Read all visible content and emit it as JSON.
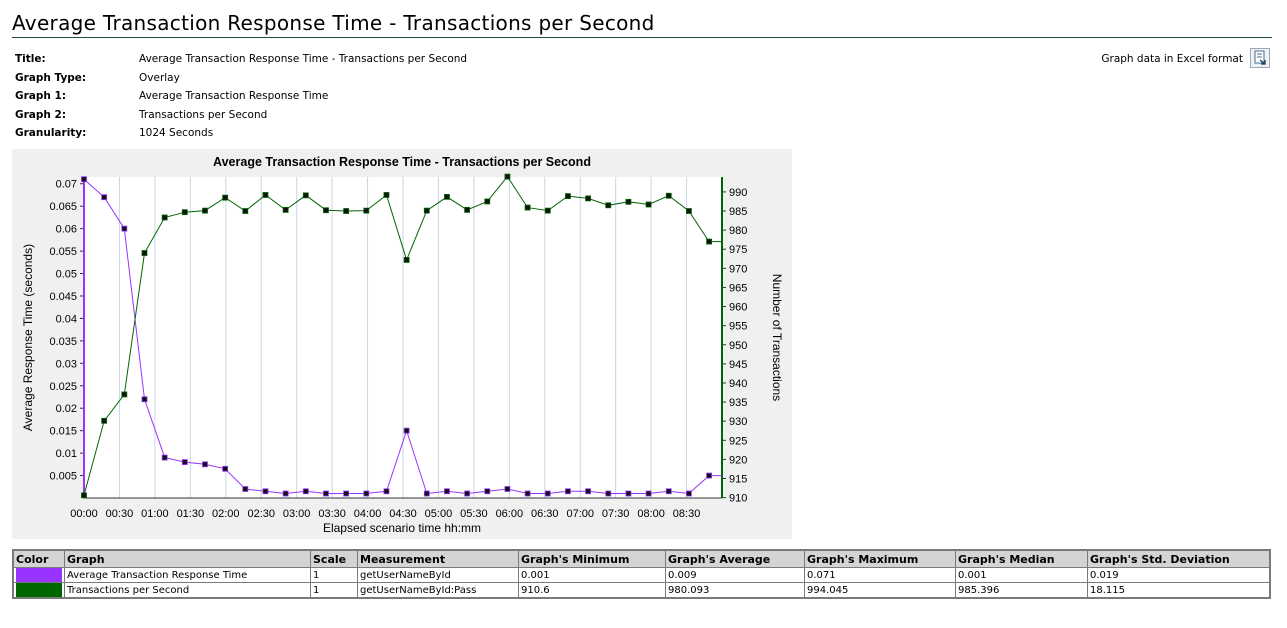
{
  "page_title": "Average Transaction Response Time - Transactions per Second",
  "meta": [
    {
      "key": "Title:",
      "value": "Average Transaction Response Time - Transactions per Second"
    },
    {
      "key": "Graph Type:",
      "value": "Overlay"
    },
    {
      "key": "Graph 1:",
      "value": "Average Transaction Response Time"
    },
    {
      "key": "Graph 2:",
      "value": "Transactions per Second"
    },
    {
      "key": "Granularity:",
      "value": "1024 Seconds"
    }
  ],
  "excel_link": "Graph data in Excel format",
  "excel_icon": "excel-export-icon",
  "chart_data": {
    "type": "line",
    "title": "Average Transaction Response Time - Transactions per Second",
    "xlabel": "Elapsed scenario time hh:mm",
    "ylabel": "Average Response Time (seconds)",
    "y2label": "Number of Transactions",
    "xlim": [
      0,
      9
    ],
    "ylim": [
      0,
      0.0715
    ],
    "y2lim": [
      909.9,
      993.9
    ],
    "grid": "vertical",
    "x_ticks": [
      "00:00",
      "00:30",
      "01:00",
      "01:30",
      "02:00",
      "02:30",
      "03:00",
      "03:30",
      "04:00",
      "04:30",
      "05:00",
      "05:30",
      "06:00",
      "06:30",
      "07:00",
      "07:30",
      "08:00",
      "08:30"
    ],
    "y_ticks": [
      "0.005",
      "0.01",
      "0.015",
      "0.02",
      "0.025",
      "0.03",
      "0.035",
      "0.04",
      "0.045",
      "0.05",
      "0.055",
      "0.06",
      "0.065",
      "0.07"
    ],
    "y2_ticks": [
      "910",
      "915",
      "920",
      "925",
      "930",
      "935",
      "940",
      "945",
      "950",
      "955",
      "960",
      "965",
      "970",
      "975",
      "980",
      "985",
      "990"
    ],
    "x": [
      0,
      0.2844,
      0.5689,
      0.8533,
      1.1378,
      1.4222,
      1.7067,
      1.9911,
      2.2756,
      2.56,
      2.8444,
      3.1289,
      3.4133,
      3.6978,
      3.9822,
      4.2667,
      4.5511,
      4.8356,
      5.12,
      5.4044,
      5.6889,
      5.9733,
      6.2578,
      6.5422,
      6.8267,
      7.1111,
      7.3956,
      7.68,
      7.9644,
      8.2489,
      8.5333,
      8.8178,
      9.0
    ],
    "series": [
      {
        "name": "Average Transaction Response Time",
        "axis": "left",
        "color": "#9933ff",
        "values": [
          0.071,
          0.067,
          0.06,
          0.022,
          0.009,
          0.008,
          0.0075,
          0.0065,
          0.002,
          0.0015,
          0.001,
          0.0015,
          0.001,
          0.001,
          0.001,
          0.0015,
          0.015,
          0.001,
          0.0015,
          0.001,
          0.0015,
          0.002,
          0.001,
          0.001,
          0.0015,
          0.0015,
          0.001,
          0.001,
          0.001,
          0.0015,
          0.001,
          0.005,
          0.005
        ]
      },
      {
        "name": "Transactions per Second",
        "axis": "right",
        "color": "#006600",
        "values": [
          910.6,
          930.1,
          937.0,
          974.0,
          983.3,
          984.7,
          985.1,
          988.5,
          985.0,
          989.2,
          985.3,
          989.1,
          985.2,
          985.0,
          985.1,
          989.2,
          972.2,
          985.1,
          988.7,
          985.3,
          987.5,
          994.0,
          985.9,
          985.1,
          988.9,
          988.3,
          986.5,
          987.4,
          986.7,
          989.0,
          985.0,
          977.0,
          977.0
        ]
      }
    ]
  },
  "legend_table": {
    "headers": [
      "Color",
      "Graph",
      "Scale",
      "Measurement",
      "Graph's Minimum",
      "Graph's Average",
      "Graph's Maximum",
      "Graph's Median",
      "Graph's Std. Deviation"
    ],
    "rows": [
      {
        "color": "#9933ff",
        "graph": "Average Transaction Response Time",
        "scale": "1",
        "measurement": "getUserNameById",
        "min": "0.001",
        "avg": "0.009",
        "max": "0.071",
        "median": "0.001",
        "std": "0.019"
      },
      {
        "color": "#006600",
        "graph": "Transactions per Second",
        "scale": "1",
        "measurement": "getUserNameById:Pass",
        "min": "910.6",
        "avg": "980.093",
        "max": "994.045",
        "median": "985.396",
        "std": "18.115"
      }
    ]
  }
}
